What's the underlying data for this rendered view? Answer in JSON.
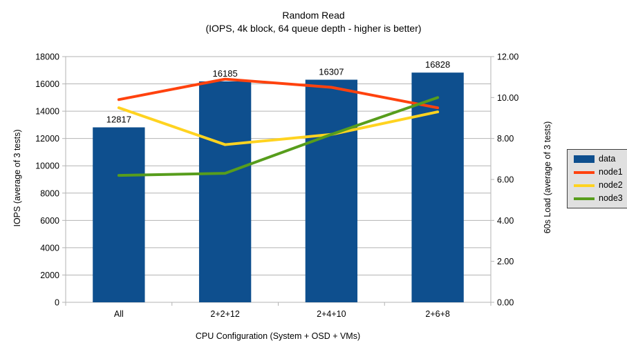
{
  "title": {
    "line1": "Random Read",
    "line2": "(IOPS, 4k block, 64 queue depth - higher is better)"
  },
  "chart_data": {
    "type": "bar+line combo",
    "categories": [
      "All",
      "2+2+12",
      "2+4+10",
      "2+6+8"
    ],
    "bar_series": {
      "name": "data",
      "color": "#0e4f8e",
      "axis": "left",
      "values": [
        12817,
        16185,
        16307,
        16828
      ]
    },
    "line_series": [
      {
        "name": "node1",
        "color": "#ff420e",
        "axis": "right",
        "values": [
          9.9,
          10.9,
          10.5,
          9.5
        ]
      },
      {
        "name": "node2",
        "color": "#ffd320",
        "axis": "right",
        "values": [
          9.5,
          7.7,
          8.2,
          9.3
        ]
      },
      {
        "name": "node3",
        "color": "#579d1c",
        "axis": "right",
        "values": [
          6.2,
          6.3,
          8.2,
          10.0
        ]
      }
    ],
    "left_axis": {
      "title": "IOPS (average of 3 tests)",
      "min": 0,
      "max": 18000,
      "step": 2000
    },
    "right_axis": {
      "title": "60s Load (average of 3 tests)",
      "min": 0,
      "max": 12,
      "step": 2,
      "decimals": 2
    },
    "x_axis": {
      "title": "CPU Configuration (System + OSD + VMs)"
    },
    "legend_position": "right",
    "grid": "horizontal",
    "colors": {
      "gridline": "#b3b3b3",
      "axis": "#b3b3b3",
      "text": "#000000",
      "legend_bg": "#e0e0e0",
      "legend_border": "#3c3c3c",
      "background": "#ffffff"
    }
  }
}
